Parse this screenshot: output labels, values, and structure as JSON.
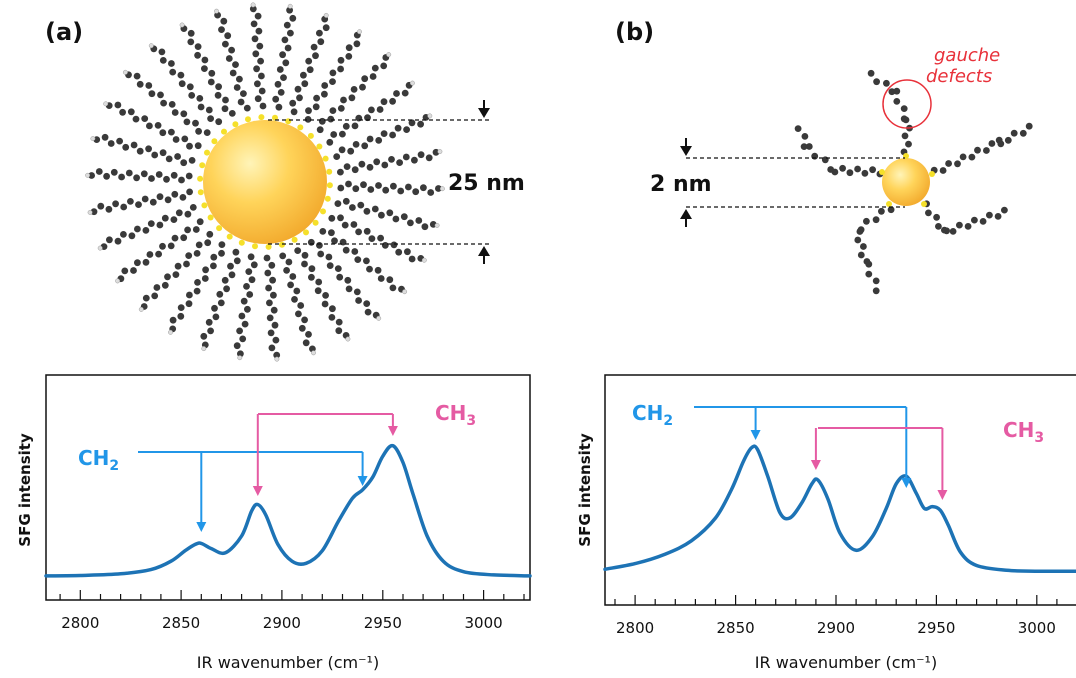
{
  "panels": {
    "a": {
      "label": "(a)",
      "size_label": "25 nm"
    },
    "b": {
      "label": "(b)",
      "size_label": "2 nm",
      "defect_label_line1": "gauche",
      "defect_label_line2": "defects"
    }
  },
  "colors": {
    "gold": "#f7c23c",
    "chain_carbon": "#3a3a3a",
    "ch2": "#2196e8",
    "ch3": "#e55ba3",
    "spectrum": "#1d73b5",
    "gauche": "#e8313a"
  },
  "chart_data": [
    {
      "type": "line",
      "title": "",
      "xlabel": "IR wavenumber (cm⁻¹)",
      "ylabel": "SFG intensity",
      "xlim": [
        2783,
        3023
      ],
      "x_ticks": [
        "2800",
        "2850",
        "2900",
        "2950",
        "3000"
      ],
      "grid": false,
      "series": [
        {
          "x": [
            2783,
            2800,
            2820,
            2835,
            2845,
            2852,
            2857,
            2860,
            2865,
            2872,
            2880,
            2885,
            2888,
            2892,
            2898,
            2905,
            2912,
            2920,
            2928,
            2935,
            2940,
            2945,
            2950,
            2955,
            2960,
            2965,
            2972,
            2980,
            2990,
            3005,
            3023
          ],
          "y": [
            0.01,
            0.012,
            0.02,
            0.04,
            0.08,
            0.13,
            0.16,
            0.165,
            0.14,
            0.12,
            0.2,
            0.32,
            0.35,
            0.3,
            0.16,
            0.08,
            0.07,
            0.13,
            0.27,
            0.38,
            0.42,
            0.48,
            0.58,
            0.63,
            0.55,
            0.4,
            0.2,
            0.08,
            0.03,
            0.015,
            0.01
          ]
        }
      ],
      "annotations": [
        {
          "label": "CH2",
          "peaks": [
            2860,
            2940
          ]
        },
        {
          "label": "CH3",
          "peaks": [
            2888,
            2955
          ]
        }
      ]
    },
    {
      "type": "line",
      "title": "",
      "xlabel": "IR wavenumber (cm⁻¹)",
      "ylabel": "SFG intensity",
      "xlim": [
        2785,
        3020
      ],
      "x_ticks": [
        "2800",
        "2850",
        "2900",
        "2950",
        "3000"
      ],
      "grid": false,
      "series": [
        {
          "x": [
            2785,
            2800,
            2815,
            2828,
            2840,
            2848,
            2854,
            2858,
            2861,
            2866,
            2872,
            2877,
            2883,
            2888,
            2891,
            2896,
            2902,
            2910,
            2918,
            2925,
            2930,
            2935,
            2940,
            2944,
            2948,
            2952,
            2956,
            2962,
            2970,
            2985,
            3000,
            3020
          ],
          "y": [
            0.03,
            0.06,
            0.11,
            0.18,
            0.3,
            0.45,
            0.6,
            0.67,
            0.66,
            0.52,
            0.33,
            0.3,
            0.38,
            0.48,
            0.5,
            0.4,
            0.22,
            0.13,
            0.2,
            0.35,
            0.48,
            0.52,
            0.43,
            0.35,
            0.36,
            0.34,
            0.26,
            0.12,
            0.05,
            0.025,
            0.02,
            0.02
          ]
        }
      ],
      "annotations": [
        {
          "label": "CH2",
          "peaks": [
            2860,
            2935
          ]
        },
        {
          "label": "CH3",
          "peaks": [
            2890,
            2953
          ]
        }
      ]
    }
  ],
  "text": {
    "ch2_main": "CH",
    "ch2_sub": "2",
    "ch3_main": "CH",
    "ch3_sub": "3"
  }
}
